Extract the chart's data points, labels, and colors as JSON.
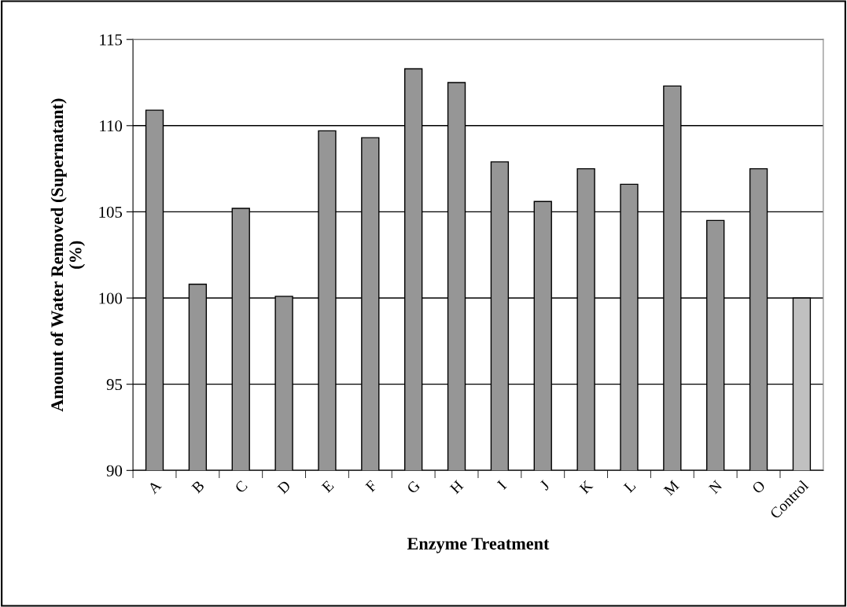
{
  "chart_data": {
    "type": "bar",
    "xlabel": "Enzyme Treatment",
    "ylabel": "Amount of Water Removed (Supernatant)\n(%)",
    "categories": [
      "A",
      "B",
      "C",
      "D",
      "E",
      "F",
      "G",
      "H",
      "I",
      "J",
      "K",
      "L",
      "M",
      "N",
      "O",
      "Control"
    ],
    "values": [
      110.9,
      100.8,
      105.2,
      100.1,
      109.7,
      109.3,
      113.3,
      112.5,
      107.9,
      105.6,
      107.5,
      106.6,
      112.3,
      104.5,
      107.5,
      100.0
    ],
    "colors": [
      "#969696",
      "#969696",
      "#969696",
      "#969696",
      "#969696",
      "#969696",
      "#969696",
      "#969696",
      "#969696",
      "#969696",
      "#969696",
      "#969696",
      "#969696",
      "#969696",
      "#969696",
      "#c0c0c0"
    ],
    "ylim": [
      90,
      115
    ],
    "yticks": [
      90,
      95,
      100,
      105,
      110,
      115
    ],
    "grid": "y"
  }
}
